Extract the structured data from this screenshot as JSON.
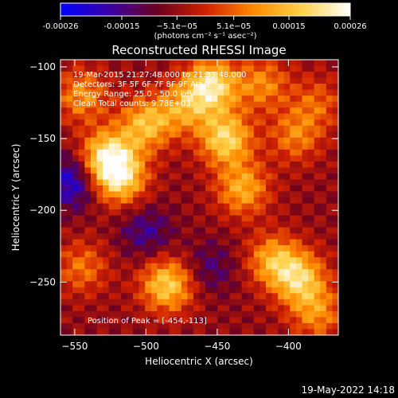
{
  "chart_data": {
    "type": "heatmap",
    "title": "Reconstructed RHESSI Image",
    "xlabel": "Heliocentric X (arcsec)",
    "ylabel": "Heliocentric Y (arcsec)",
    "xlim": [
      -560,
      -365
    ],
    "ylim": [
      -287,
      -95
    ],
    "x_ticks": [
      -550,
      -500,
      -450,
      -400
    ],
    "x_tick_labels": [
      "−550",
      "−500",
      "−450",
      "−400"
    ],
    "y_ticks": [
      -100,
      -150,
      -200,
      -250
    ],
    "y_tick_labels": [
      "−100",
      "−150",
      "−200",
      "−250"
    ],
    "colorbar": {
      "range": [
        -0.00026,
        0.00026
      ],
      "ticks": [
        -0.00026,
        -0.00015,
        -5.1e-05,
        5.1e-05,
        0.00015,
        0.00026
      ],
      "tick_labels": [
        "-0.00026",
        "-0.00015",
        "−5.1e−05",
        "5.1e−05",
        "0.00015",
        "0.00026"
      ],
      "label": "(photons cm⁻² s⁻¹ asec⁻²)",
      "colors": [
        "#0000ff",
        "#3a00a8",
        "#6a0020",
        "#d02000",
        "#ff8a00",
        "#ffd24a",
        "#ffffff"
      ]
    },
    "annotations": [
      "19-Mar-2015 21:27:48.000 to 21:33:48.000",
      "Detectors: 3F 5F 6F 7F 8F 9F  Att 0",
      "Energy Range: 25.0 - 50.0 keV",
      "Clean     Total counts: 9.78E+03"
    ],
    "peak_label": "Position of Peak = [-454,-113]",
    "peak": [
      -454,
      -113
    ],
    "sources": [
      {
        "x": -545,
        "y": -120,
        "value": 0.00015
      },
      {
        "x": -527,
        "y": -163,
        "value": 0.00026
      },
      {
        "x": -518,
        "y": -178,
        "value": 0.00022
      },
      {
        "x": -500,
        "y": -140,
        "value": 0.0002
      },
      {
        "x": -473,
        "y": -128,
        "value": 0.00015
      },
      {
        "x": -454,
        "y": -113,
        "value": 0.00026
      },
      {
        "x": -444,
        "y": -150,
        "value": 0.00024
      },
      {
        "x": -432,
        "y": -185,
        "value": 0.00018
      },
      {
        "x": -418,
        "y": -112,
        "value": 0.00014
      },
      {
        "x": -395,
        "y": -148,
        "value": 0.00013
      },
      {
        "x": -380,
        "y": -125,
        "value": 0.0001
      },
      {
        "x": -545,
        "y": -240,
        "value": 0.00012
      },
      {
        "x": -485,
        "y": -252,
        "value": 0.00023
      },
      {
        "x": -392,
        "y": -248,
        "value": 0.00021
      },
      {
        "x": -410,
        "y": -235,
        "value": 0.00018
      },
      {
        "x": -380,
        "y": -272,
        "value": 0.00014
      },
      {
        "x": -455,
        "y": -240,
        "value": -8e-05
      },
      {
        "x": -500,
        "y": -215,
        "value": -0.0001
      },
      {
        "x": -552,
        "y": -180,
        "value": -0.00016
      }
    ]
  },
  "footer": {
    "date": "19-May-2022 14:18"
  }
}
